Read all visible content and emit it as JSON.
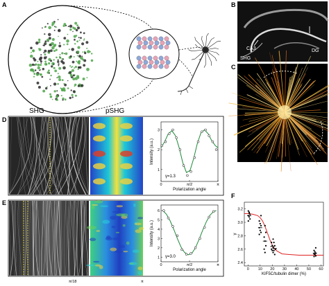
{
  "panels": {
    "a": "A",
    "b": "B",
    "c": "C",
    "d": "D",
    "e": "E",
    "f": "F"
  },
  "panel_b": {
    "shg_label": "SHG",
    "ca3_label": "CA3",
    "dg_label": "DG"
  },
  "headers": {
    "shg": "SHG",
    "pshg": "pSHG"
  },
  "panel_e_bottom": {
    "left_tick": "π/18",
    "right_tick": "π"
  },
  "chart_data": [
    {
      "type": "line",
      "panel": "D",
      "title": "",
      "xlabel": "Polarization angle",
      "ylabel": "Intensity (a.u.)",
      "xticks": [
        "0",
        "π/2",
        "π"
      ],
      "yticks": [
        "1",
        "2",
        "3"
      ],
      "xlim": [
        0,
        3.14
      ],
      "ylim": [
        0.4,
        3.4
      ],
      "annotation": "γ=1.3",
      "series": [
        {
          "name": "",
          "kind": "points",
          "x": [
            0.05,
            0.25,
            0.45,
            0.65,
            0.85,
            1.05,
            1.25,
            1.45,
            1.65,
            1.85,
            2.05,
            2.25,
            2.45,
            2.65,
            2.85,
            3.05
          ],
          "y": [
            2.2,
            2.4,
            2.8,
            3.0,
            2.6,
            2.0,
            1.2,
            0.7,
            0.9,
            1.6,
            2.4,
            2.9,
            3.0,
            2.7,
            2.4,
            2.0
          ]
        },
        {
          "name": "",
          "kind": "fit",
          "x": [
            0,
            0.2,
            0.4,
            0.6,
            0.8,
            1.0,
            1.2,
            1.4,
            1.6,
            1.8,
            2.0,
            2.2,
            2.4,
            2.6,
            2.8,
            3.0,
            3.14
          ],
          "y": [
            2.1,
            2.4,
            2.8,
            2.95,
            2.7,
            2.1,
            1.35,
            0.85,
            0.95,
            1.55,
            2.3,
            2.85,
            3.0,
            2.8,
            2.45,
            2.2,
            2.1
          ]
        }
      ]
    },
    {
      "type": "line",
      "panel": "E",
      "title": "",
      "xlabel": "Polarization angle",
      "ylabel": "Intensity (a.u.)",
      "xticks": [
        "0",
        "π/2",
        "π"
      ],
      "yticks": [
        "1",
        "2",
        "3",
        "4",
        "5",
        "6"
      ],
      "xlim": [
        0,
        3.14
      ],
      "ylim": [
        0.5,
        6.6
      ],
      "annotation": "γ=3.0",
      "series": [
        {
          "name": "",
          "kind": "points",
          "x": [
            0.15,
            0.4,
            0.65,
            0.9,
            1.15,
            1.4,
            1.65,
            1.9,
            2.15,
            2.4,
            2.65,
            2.9
          ],
          "y": [
            6.0,
            5.2,
            4.3,
            3.3,
            1.8,
            1.3,
            1.4,
            2.0,
            3.0,
            4.2,
            5.3,
            5.9
          ]
        },
        {
          "name": "",
          "kind": "fit",
          "x": [
            0.1,
            0.3,
            0.5,
            0.7,
            0.9,
            1.1,
            1.3,
            1.5,
            1.7,
            1.9,
            2.1,
            2.3,
            2.5,
            2.7,
            2.9,
            3.05
          ],
          "y": [
            6.0,
            5.6,
            4.9,
            4.0,
            3.0,
            2.1,
            1.5,
            1.25,
            1.4,
            2.0,
            2.9,
            3.9,
            4.8,
            5.5,
            5.9,
            6.0
          ]
        }
      ]
    },
    {
      "type": "scatter",
      "panel": "F",
      "title": "",
      "xlabel": "KIF5C/tubulin dimer (%)",
      "ylabel": "γ",
      "xticks": [
        "0",
        "10",
        "20",
        "30",
        "40",
        "50",
        "60"
      ],
      "yticks": [
        "2.4",
        "2.6",
        "2.8",
        "3.0",
        "3.2"
      ],
      "xlim": [
        -3,
        62
      ],
      "ylim": [
        2.35,
        3.3
      ],
      "series": [
        {
          "name": "",
          "kind": "points",
          "x": [
            1,
            1,
            1,
            1,
            1,
            1,
            1,
            1,
            10,
            10,
            10,
            10,
            10,
            10,
            10,
            10,
            14,
            14,
            14,
            14,
            14,
            14,
            14,
            20,
            20,
            20,
            20,
            20,
            20,
            20,
            22,
            22,
            22,
            22,
            22,
            55,
            55,
            55,
            55,
            55,
            55,
            55,
            55
          ],
          "y": [
            3.17,
            3.14,
            3.12,
            3.1,
            3.08,
            3.05,
            3.02,
            3.15,
            3.1,
            3.02,
            2.98,
            2.95,
            2.92,
            2.88,
            2.85,
            2.82,
            2.95,
            2.85,
            2.78,
            2.72,
            2.65,
            2.6,
            2.55,
            2.75,
            2.7,
            2.65,
            2.62,
            2.6,
            2.58,
            2.55,
            2.7,
            2.65,
            2.6,
            2.58,
            2.52,
            2.62,
            2.58,
            2.56,
            2.54,
            2.53,
            2.52,
            2.5,
            2.49
          ]
        },
        {
          "name": "",
          "kind": "means",
          "x": [
            1,
            10,
            14,
            20,
            22,
            55
          ],
          "y": [
            3.1,
            2.92,
            2.72,
            2.64,
            2.61,
            2.54
          ]
        },
        {
          "name": "",
          "kind": "fit",
          "x": [
            -3,
            0,
            4,
            8,
            10,
            12,
            14,
            16,
            18,
            20,
            22,
            24,
            28,
            34,
            42,
            52,
            62
          ],
          "y": [
            3.13,
            3.13,
            3.12,
            3.1,
            3.07,
            3.02,
            2.94,
            2.84,
            2.74,
            2.66,
            2.6,
            2.57,
            2.53,
            2.52,
            2.51,
            2.51,
            2.51
          ]
        }
      ]
    }
  ]
}
